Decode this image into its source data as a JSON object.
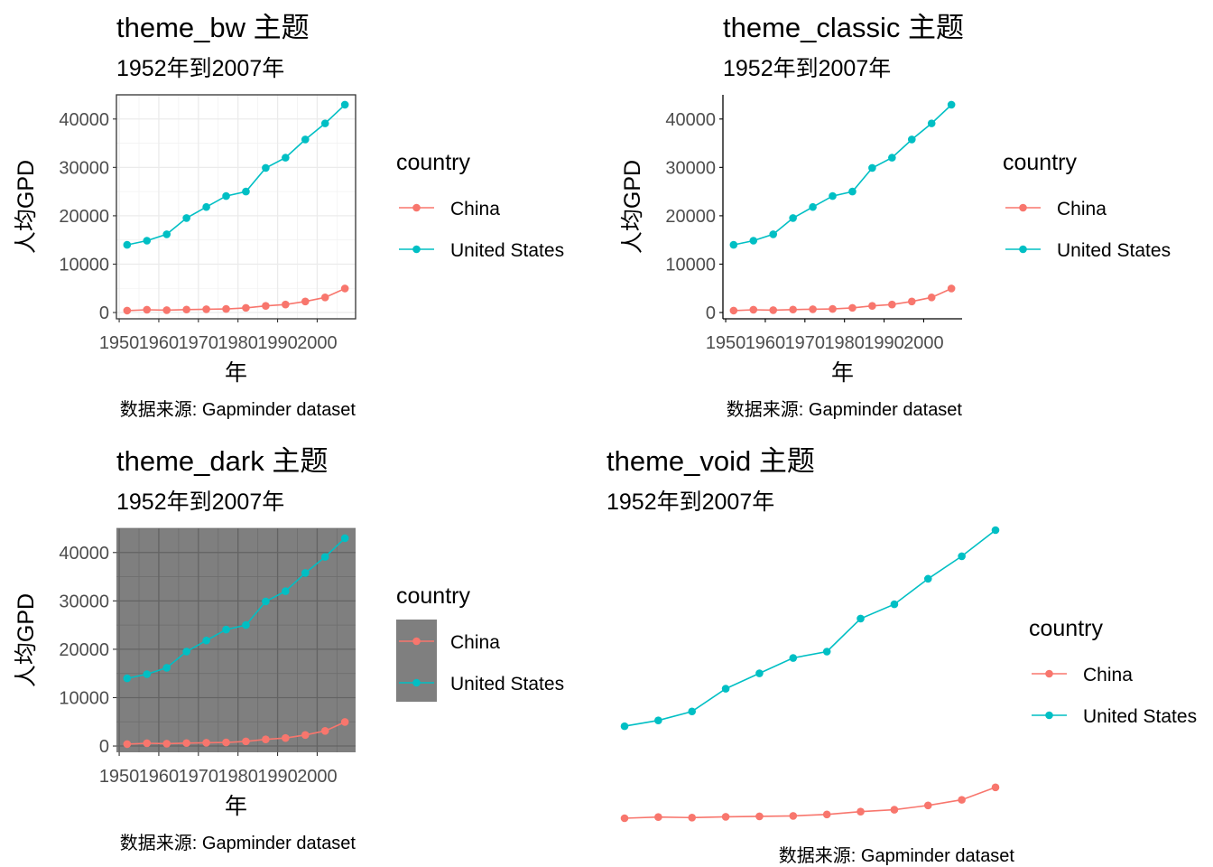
{
  "chart_data": {
    "type": "line",
    "x": [
      1952,
      1957,
      1962,
      1967,
      1972,
      1977,
      1982,
      1987,
      1992,
      1997,
      2002,
      2007
    ],
    "series": [
      {
        "name": "China",
        "color": "#F8766D",
        "values": [
          400.45,
          575.99,
          487.67,
          612.71,
          676.9,
          741.24,
          962.42,
          1378.9,
          1655.78,
          2289.23,
          3119.28,
          4959.11
        ]
      },
      {
        "name": "United States",
        "color": "#00BFC4",
        "values": [
          13990.48,
          14847.13,
          16173.15,
          19530.37,
          21806.04,
          24072.63,
          25009.56,
          29884.35,
          32003.93,
          35767.43,
          39097.1,
          42951.65
        ]
      }
    ],
    "xlabel": "年",
    "ylabel": "人均GPD",
    "caption": "数据来源: Gapminder dataset",
    "subtitle": "1952年到2007年",
    "legend_title": "country",
    "legend_labels": [
      "China",
      "United States"
    ],
    "x_ticks": [
      "1950",
      "1960",
      "1970",
      "1980",
      "1990",
      "2000"
    ],
    "y_ticks": [
      "0",
      "10000",
      "20000",
      "30000",
      "40000"
    ],
    "xlim": [
      1949.3,
      2009.7
    ],
    "ylim": [
      -1300,
      45000
    ],
    "legend_placement": "right",
    "panels": [
      {
        "title": "theme_bw 主题",
        "theme": "bw"
      },
      {
        "title": "theme_classic 主题",
        "theme": "classic"
      },
      {
        "title": "theme_dark 主题",
        "theme": "dark"
      },
      {
        "title": "theme_void 主题",
        "theme": "void"
      }
    ]
  }
}
